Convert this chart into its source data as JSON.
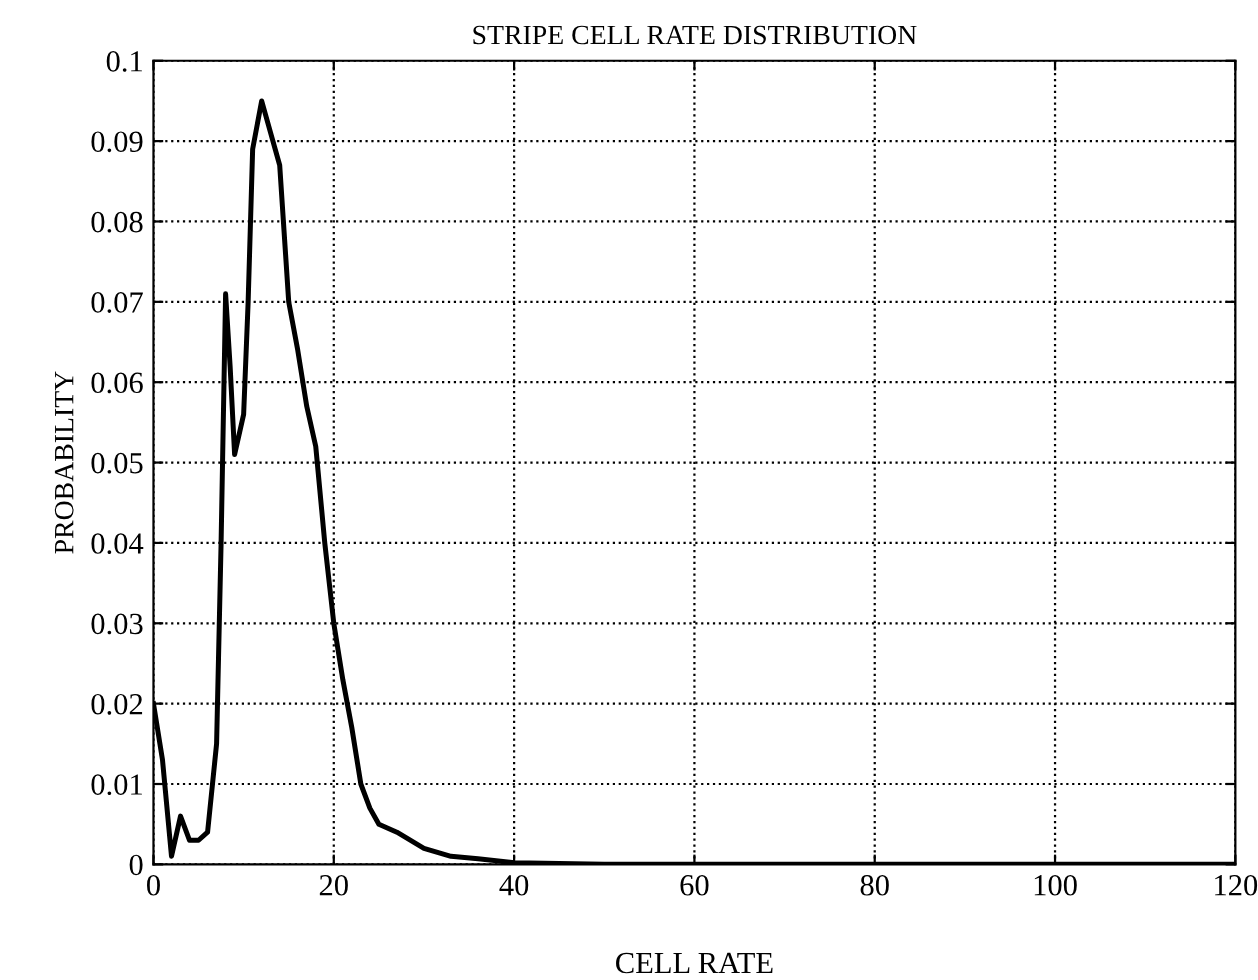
{
  "chart_data": {
    "type": "line",
    "title": "STRIPE CELL RATE DISTRIBUTION",
    "xlabel": "CELL RATE",
    "ylabel": "PROBABILITY",
    "x": [
      0,
      1,
      2,
      3,
      4,
      5,
      6,
      7,
      7.5,
      8,
      8.5,
      9,
      10,
      10.5,
      11,
      12,
      13,
      14,
      15,
      16,
      17,
      18,
      19,
      20,
      21,
      22,
      23,
      24,
      25,
      27,
      30,
      33,
      36,
      40,
      45,
      50,
      120
    ],
    "series": [
      {
        "color": "#000000",
        "values": [
          0.02,
          0.013,
          0.001,
          0.006,
          0.003,
          0.003,
          0.004,
          0.015,
          0.04,
          0.071,
          0.062,
          0.051,
          0.056,
          0.07,
          0.089,
          0.095,
          0.091,
          0.087,
          0.07,
          0.064,
          0.057,
          0.052,
          0.04,
          0.03,
          0.023,
          0.017,
          0.01,
          0.007,
          0.005,
          0.004,
          0.002,
          0.001,
          0.0007,
          0.0002,
          0.0001,
          0,
          0
        ]
      }
    ],
    "xlim": [
      0,
      120
    ],
    "xticks": [
      0,
      20,
      40,
      60,
      80,
      100,
      120
    ],
    "ylim": [
      0,
      0.1
    ],
    "yticks": [
      0,
      0.01,
      0.02,
      0.03,
      0.04,
      0.05,
      0.06,
      0.07,
      0.08,
      0.09,
      0.1
    ],
    "grid": true,
    "marker": "none",
    "line_style": "solid",
    "legend": false
  }
}
